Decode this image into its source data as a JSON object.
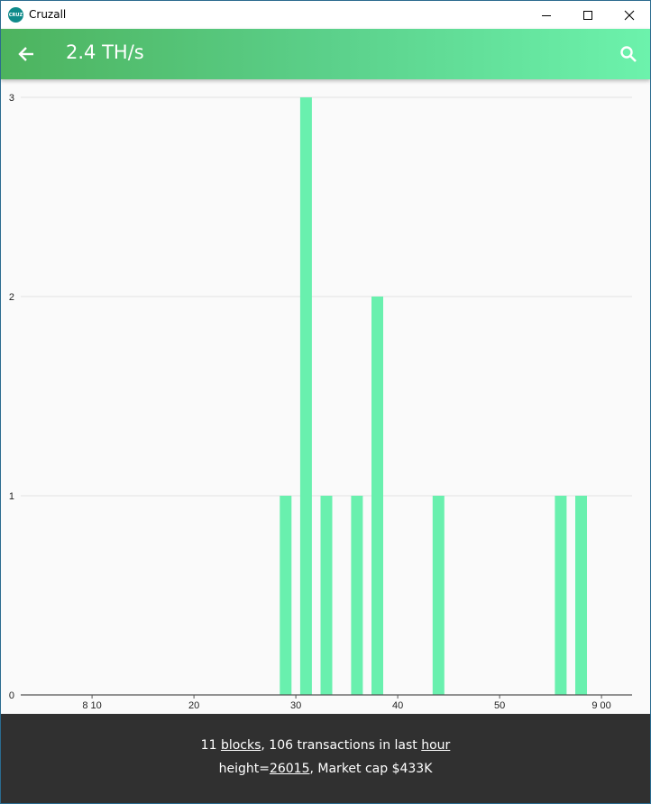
{
  "window": {
    "title": "Cruzall",
    "icon_label": "CRUZ"
  },
  "appbar": {
    "title": "2.4 TH/s",
    "back_icon": "arrow-back-icon",
    "search_icon": "search-icon"
  },
  "chart_data": {
    "type": "bar",
    "title": "",
    "xlabel": "",
    "ylabel": "",
    "ylim": [
      0,
      3
    ],
    "yticks": [
      "0",
      "1",
      "2",
      "3"
    ],
    "xlim": [
      3,
      63
    ],
    "xticks": [
      {
        "value": 10,
        "label": "8 10"
      },
      {
        "value": 20,
        "label": "20"
      },
      {
        "value": 30,
        "label": "30"
      },
      {
        "value": 40,
        "label": "40"
      },
      {
        "value": 50,
        "label": "50"
      },
      {
        "value": 60,
        "label": "9 00"
      }
    ],
    "bars": [
      {
        "x": 29,
        "value": 1
      },
      {
        "x": 31,
        "value": 3
      },
      {
        "x": 33,
        "value": 1
      },
      {
        "x": 36,
        "value": 1
      },
      {
        "x": 38,
        "value": 2
      },
      {
        "x": 44,
        "value": 1
      },
      {
        "x": 56,
        "value": 1
      },
      {
        "x": 58,
        "value": 1
      }
    ],
    "grid": true,
    "bar_color": "#69f0ae"
  },
  "footer": {
    "blocks_count": "11",
    "blocks_link": "blocks",
    "transactions_text": ", 106 transactions in last ",
    "hour_link": "hour",
    "height_prefix": "height=",
    "height_link": "26015",
    "market_cap_text": ", Market cap $433K"
  },
  "colors": {
    "appbar_start": "#4db35e",
    "appbar_end": "#6cf2ac",
    "footer_bg": "#303030",
    "bar": "#69f0ae"
  }
}
